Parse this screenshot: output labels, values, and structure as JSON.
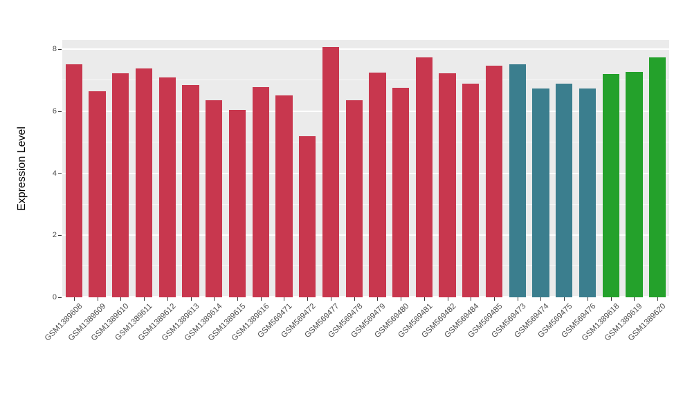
{
  "chart_data": {
    "type": "bar",
    "title": "",
    "xlabel": "",
    "ylabel": "Expression Level",
    "ylim": [
      0,
      8.3
    ],
    "yticks": [
      0,
      2,
      4,
      6,
      8
    ],
    "minor_ticks": [
      1,
      3,
      5,
      7
    ],
    "grid": true,
    "legend": "none",
    "panel_bg": "#EBEBEB",
    "grid_color": "#FFFFFF",
    "tick_label_color": "#4D4D4D",
    "group_colors": {
      "red": "#C8374E",
      "teal": "#3B7E8E",
      "green": "#24A12B"
    },
    "categories": [
      "GSM1389608",
      "GSM1389609",
      "GSM1389610",
      "GSM1389611",
      "GSM1389612",
      "GSM1389613",
      "GSM1389614",
      "GSM1389615",
      "GSM1389616",
      "GSM569471",
      "GSM569472",
      "GSM569477",
      "GSM569478",
      "GSM569479",
      "GSM569480",
      "GSM569481",
      "GSM569482",
      "GSM569484",
      "GSM569485",
      "GSM569473",
      "GSM569474",
      "GSM569475",
      "GSM569476",
      "GSM1389618",
      "GSM1389619",
      "GSM1389620"
    ],
    "values": [
      7.52,
      6.65,
      7.23,
      7.38,
      7.1,
      6.85,
      6.36,
      6.05,
      6.78,
      6.52,
      5.2,
      8.07,
      6.36,
      7.25,
      6.76,
      7.74,
      7.23,
      6.9,
      7.48,
      7.51,
      6.73,
      6.9,
      6.74,
      7.2,
      7.27,
      7.75
    ],
    "groups": [
      "red",
      "red",
      "red",
      "red",
      "red",
      "red",
      "red",
      "red",
      "red",
      "red",
      "red",
      "red",
      "red",
      "red",
      "red",
      "red",
      "red",
      "red",
      "red",
      "teal",
      "teal",
      "teal",
      "teal",
      "green",
      "green",
      "green"
    ]
  }
}
